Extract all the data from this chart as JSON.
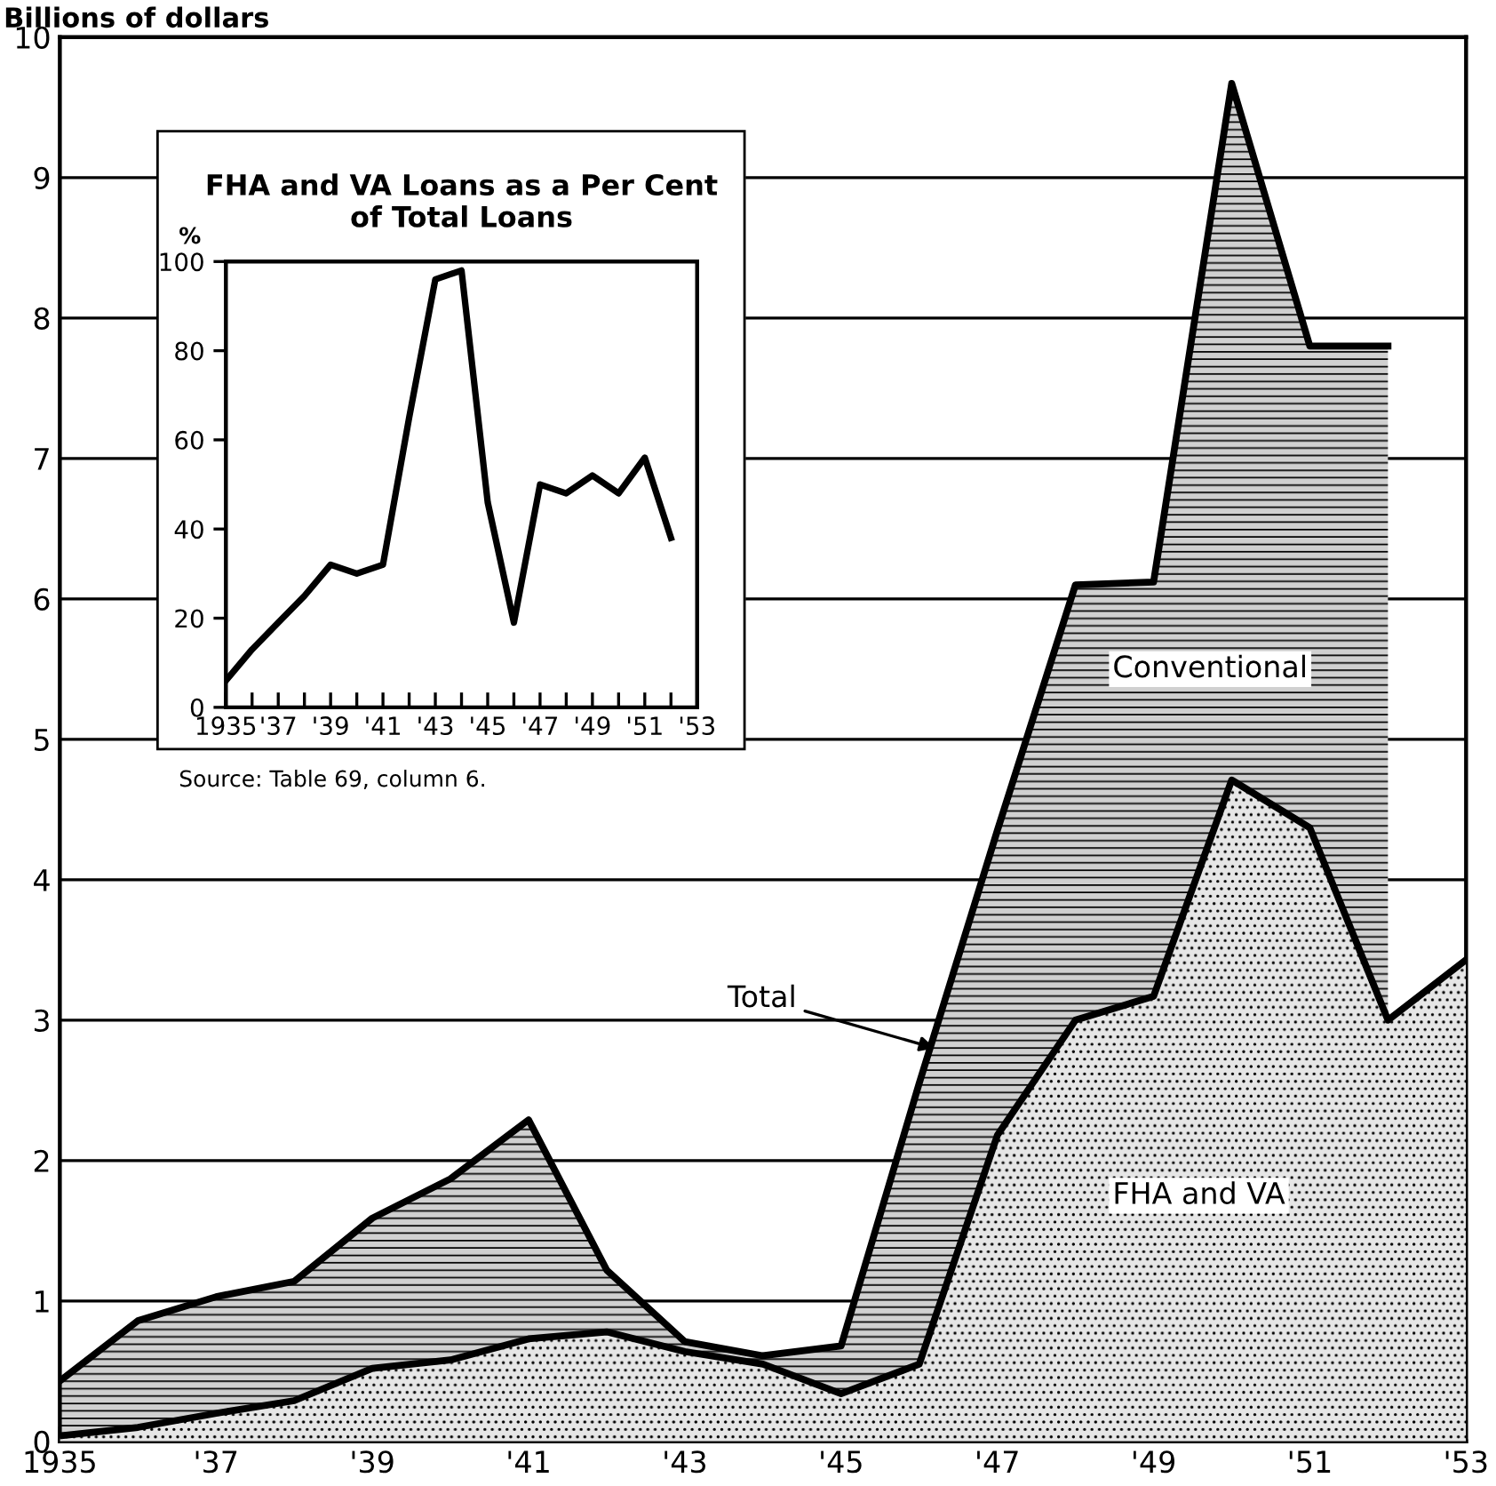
{
  "chart_data": [
    {
      "type": "area",
      "ylabel": "Billions of dollars",
      "x": [
        1935,
        1936,
        1937,
        1938,
        1939,
        1940,
        1941,
        1942,
        1943,
        1944,
        1945,
        1946,
        1947,
        1948,
        1949,
        1950,
        1951,
        1952,
        1953
      ],
      "series": [
        {
          "color": "#d0d0d0",
          "values": [
            0.43,
            0.86,
            1.03,
            1.14,
            1.59,
            1.87,
            2.29,
            1.22,
            0.71,
            0.61,
            0.68,
            2.55,
            4.35,
            6.1,
            6.12,
            9.67,
            7.8,
            7.8,
            null
          ]
        },
        {
          "color": "#e6e6e6",
          "values": [
            0.04,
            0.1,
            0.2,
            0.29,
            0.52,
            0.58,
            0.73,
            0.78,
            0.64,
            0.55,
            0.34,
            0.55,
            2.18,
            3.0,
            3.17,
            4.71,
            4.37,
            3.0,
            3.43
          ]
        }
      ],
      "xlim": [
        1935,
        1953
      ],
      "ylim": [
        0,
        10
      ],
      "xticks": [
        {
          "value": 1935,
          "label": "1935"
        },
        {
          "value": 1936,
          "label": null
        },
        {
          "value": 1937,
          "label": "'37"
        },
        {
          "value": 1938,
          "label": null
        },
        {
          "value": 1939,
          "label": "'39"
        },
        {
          "value": 1940,
          "label": null
        },
        {
          "value": 1941,
          "label": "'41"
        },
        {
          "value": 1942,
          "label": null
        },
        {
          "value": 1943,
          "label": "'43"
        },
        {
          "value": 1944,
          "label": null
        },
        {
          "value": 1945,
          "label": "'45"
        },
        {
          "value": 1946,
          "label": null
        },
        {
          "value": 1947,
          "label": "'47"
        },
        {
          "value": 1948,
          "label": null
        },
        {
          "value": 1949,
          "label": "'49"
        },
        {
          "value": 1950,
          "label": null
        },
        {
          "value": 1951,
          "label": "'51"
        },
        {
          "value": 1952,
          "label": null
        },
        {
          "value": 1953,
          "label": "'53"
        }
      ],
      "yticks": [
        0,
        1,
        2,
        3,
        4,
        5,
        6,
        7,
        8,
        9,
        10
      ],
      "grid": "y",
      "annotations": [
        {
          "text": "Total",
          "x": 1946.2,
          "y": 2.8
        },
        "Conventional",
        "FHA and VA"
      ]
    },
    {
      "type": "line",
      "title": "FHA and VA Loans as a Per Cent\nof Total Loans",
      "ylabel": "%",
      "x": [
        1935,
        1936,
        1937,
        1938,
        1939,
        1940,
        1941,
        1942,
        1943,
        1944,
        1945,
        1946,
        1947,
        1948,
        1949,
        1950,
        1951,
        1952
      ],
      "series": [
        {
          "color": "#000000",
          "values": [
            6,
            13,
            19,
            25,
            32,
            30,
            32,
            65,
            96,
            98,
            46,
            19,
            50,
            48,
            52,
            48,
            56,
            38
          ]
        }
      ],
      "xlim": [
        1935,
        1953
      ],
      "ylim": [
        0,
        100
      ],
      "xticks": [
        {
          "value": 1935,
          "label": "1935"
        },
        {
          "value": 1936,
          "label": null
        },
        {
          "value": 1937,
          "label": "'37"
        },
        {
          "value": 1938,
          "label": null
        },
        {
          "value": 1939,
          "label": "'39"
        },
        {
          "value": 1940,
          "label": null
        },
        {
          "value": 1941,
          "label": "'41"
        },
        {
          "value": 1942,
          "label": null
        },
        {
          "value": 1943,
          "label": "'43"
        },
        {
          "value": 1944,
          "label": null
        },
        {
          "value": 1945,
          "label": "'45"
        },
        {
          "value": 1946,
          "label": null
        },
        {
          "value": 1947,
          "label": "'47"
        },
        {
          "value": 1948,
          "label": null
        },
        {
          "value": 1949,
          "label": "'49"
        },
        {
          "value": 1950,
          "label": null
        },
        {
          "value": 1951,
          "label": "'51"
        },
        {
          "value": 1952,
          "label": null
        },
        {
          "value": 1953,
          "label": "'53"
        }
      ],
      "yticks": [
        0,
        20,
        40,
        60,
        80,
        100
      ],
      "annotations": [
        "Source: Table 69, column 6."
      ]
    }
  ]
}
